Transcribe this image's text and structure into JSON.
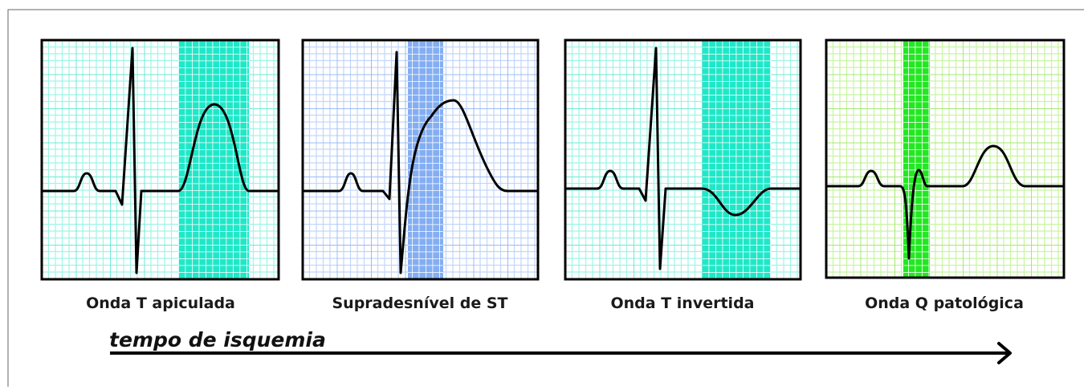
{
  "panels": [
    {
      "label": "Onda T apiculada"
    },
    {
      "label": "Supradesnível de ST"
    },
    {
      "label": "Onda T invertida"
    },
    {
      "label": "Onda Q patológica"
    }
  ],
  "arrow_label": "tempo de isquemia"
}
